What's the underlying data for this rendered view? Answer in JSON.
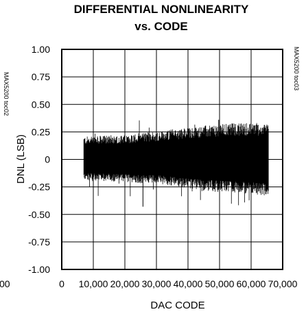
{
  "chart_data": {
    "type": "area",
    "title": [
      "DIFFERENTIAL NONLINEARITY",
      "vs. CODE"
    ],
    "xlabel": "DAC CODE",
    "ylabel": "DNL (LSB)",
    "xlim": [
      0,
      70000
    ],
    "ylim": [
      -1.0,
      1.0
    ],
    "x_ticks": [
      0,
      10000,
      20000,
      30000,
      40000,
      50000,
      60000,
      70000
    ],
    "x_tick_labels": [
      "0",
      "10,000",
      "20,000",
      "30,000",
      "40,000",
      "50,000",
      "60,000",
      "70,000"
    ],
    "y_ticks": [
      1.0,
      0.75,
      0.5,
      0.25,
      0,
      -0.25,
      -0.5,
      -0.75,
      -1.0
    ],
    "y_tick_labels": [
      "1.00",
      "0.75",
      "0.50",
      "0.25",
      "0",
      "-0.25",
      "-0.50",
      "-0.75",
      "-1.00"
    ],
    "grid": true,
    "series": [
      {
        "color": "#000000",
        "x": [
          7000,
          10000,
          15000,
          20000,
          25000,
          30000,
          35000,
          40000,
          45000,
          50000,
          55000,
          60000,
          65535
        ],
        "upper": [
          0.19,
          0.19,
          0.2,
          0.2,
          0.22,
          0.23,
          0.25,
          0.26,
          0.28,
          0.29,
          0.3,
          0.3,
          0.3
        ],
        "lower": [
          -0.17,
          -0.18,
          -0.18,
          -0.19,
          -0.2,
          -0.2,
          -0.22,
          -0.24,
          -0.26,
          -0.27,
          -0.28,
          -0.29,
          -0.3
        ],
        "peak_max": 0.36,
        "peak_min": -0.43
      }
    ]
  },
  "side_notes": {
    "right": "MAX5200 toc03",
    "left_partial": "MAX5200 toc02"
  },
  "left_cut_label": "00"
}
